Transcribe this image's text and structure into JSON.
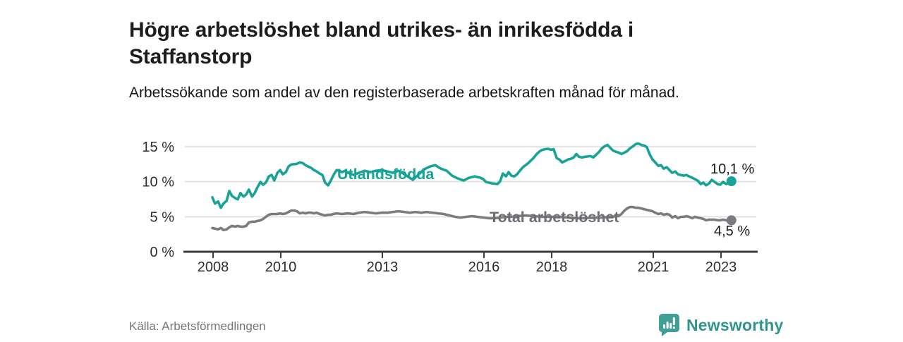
{
  "header": {
    "title": "Högre arbetslöshet bland utrikes- än inrikesfödda i Staffanstorp",
    "subtitle": "Arbetssökande som andel av den registerbaserade arbetskraften månad för månad."
  },
  "footer": {
    "source": "Källa: Arbetsförmedlingen",
    "brand": "Newsworthy"
  },
  "colors": {
    "accent_teal": "#17a398",
    "line_gray": "#7c7c80",
    "label_gray": "#6f6f73",
    "axis": "#3c3c3c",
    "gridline": "#dcdcdc",
    "brand_teal": "#3f9e96"
  },
  "chart_data": {
    "type": "line",
    "title": "Högre arbetslöshet bland utrikes- än inrikesfödda i Staffanstorp",
    "subtitle": "Arbetssökande som andel av den registerbaserade arbetskraften månad för månad.",
    "xlabel": "",
    "ylabel": "",
    "xlim": [
      2007.2,
      2024.1
    ],
    "ylim": [
      0,
      16.9
    ],
    "grid": "horizontal",
    "legend_position": "inline-labels",
    "ytick_values": [
      0,
      5,
      10,
      15
    ],
    "ytick_labels": [
      "0 %",
      "5 %",
      "10 %",
      "15 %"
    ],
    "xtick_values": [
      2008,
      2010,
      2013,
      2016,
      2018,
      2021,
      2023
    ],
    "xtick_labels": [
      "2008",
      "2010",
      "2013",
      "2016",
      "2018",
      "2021",
      "2023"
    ],
    "series": [
      {
        "id": "utlandsfodda",
        "name": "Utlandsfödda",
        "color": "#17a398",
        "end_label": "10,1 %",
        "end_value": 10.1,
        "points": [
          [
            2008.0,
            7.8
          ],
          [
            2008.08,
            6.9
          ],
          [
            2008.17,
            7.2
          ],
          [
            2008.25,
            6.3
          ],
          [
            2008.33,
            6.9
          ],
          [
            2008.42,
            7.3
          ],
          [
            2008.5,
            8.7
          ],
          [
            2008.58,
            8.0
          ],
          [
            2008.67,
            7.7
          ],
          [
            2008.75,
            7.5
          ],
          [
            2008.83,
            8.4
          ],
          [
            2008.92,
            7.9
          ],
          [
            2009.0,
            8.2
          ],
          [
            2009.08,
            8.9
          ],
          [
            2009.17,
            7.9
          ],
          [
            2009.25,
            8.4
          ],
          [
            2009.33,
            9.2
          ],
          [
            2009.42,
            10.0
          ],
          [
            2009.5,
            9.6
          ],
          [
            2009.58,
            9.9
          ],
          [
            2009.67,
            10.8
          ],
          [
            2009.75,
            11.0
          ],
          [
            2009.83,
            10.2
          ],
          [
            2009.92,
            11.3
          ],
          [
            2010.0,
            11.7
          ],
          [
            2010.08,
            11.1
          ],
          [
            2010.17,
            11.4
          ],
          [
            2010.25,
            12.2
          ],
          [
            2010.33,
            12.5
          ],
          [
            2010.5,
            12.6
          ],
          [
            2010.58,
            12.8
          ],
          [
            2010.67,
            12.7
          ],
          [
            2010.75,
            12.4
          ],
          [
            2010.83,
            12.2
          ],
          [
            2010.92,
            12.0
          ],
          [
            2011.0,
            11.7
          ],
          [
            2011.08,
            11.5
          ],
          [
            2011.17,
            11.2
          ],
          [
            2011.25,
            11.0
          ],
          [
            2011.33,
            9.9
          ],
          [
            2011.42,
            9.5
          ],
          [
            2011.5,
            10.2
          ],
          [
            2011.58,
            11.0
          ],
          [
            2011.67,
            11.7
          ],
          [
            2011.75,
            11.6
          ],
          [
            2011.83,
            11.4
          ],
          [
            2011.92,
            11.6
          ],
          [
            2012.0,
            11.3
          ],
          [
            2012.17,
            11.0
          ],
          [
            2012.33,
            11.3
          ],
          [
            2012.5,
            11.6
          ],
          [
            2012.67,
            11.4
          ],
          [
            2012.83,
            11.6
          ],
          [
            2013.0,
            11.7
          ],
          [
            2013.17,
            11.5
          ],
          [
            2013.33,
            11.3
          ],
          [
            2013.5,
            11.6
          ],
          [
            2013.67,
            11.1
          ],
          [
            2013.83,
            10.6
          ],
          [
            2013.92,
            10.3
          ],
          [
            2014.08,
            11.0
          ],
          [
            2014.25,
            11.8
          ],
          [
            2014.42,
            12.2
          ],
          [
            2014.58,
            12.4
          ],
          [
            2014.75,
            11.9
          ],
          [
            2014.92,
            11.6
          ],
          [
            2015.08,
            10.9
          ],
          [
            2015.25,
            10.5
          ],
          [
            2015.42,
            10.2
          ],
          [
            2015.58,
            10.6
          ],
          [
            2015.75,
            10.8
          ],
          [
            2015.92,
            10.6
          ],
          [
            2016.0,
            10.4
          ],
          [
            2016.08,
            10.0
          ],
          [
            2016.25,
            9.8
          ],
          [
            2016.42,
            9.7
          ],
          [
            2016.5,
            10.1
          ],
          [
            2016.58,
            11.2
          ],
          [
            2016.67,
            10.8
          ],
          [
            2016.75,
            11.4
          ],
          [
            2016.83,
            10.9
          ],
          [
            2016.92,
            10.8
          ],
          [
            2017.0,
            11.1
          ],
          [
            2017.08,
            11.6
          ],
          [
            2017.17,
            12.1
          ],
          [
            2017.33,
            12.7
          ],
          [
            2017.5,
            13.5
          ],
          [
            2017.58,
            14.0
          ],
          [
            2017.67,
            14.4
          ],
          [
            2017.75,
            14.6
          ],
          [
            2017.83,
            14.7
          ],
          [
            2017.92,
            14.75
          ],
          [
            2018.0,
            14.6
          ],
          [
            2018.08,
            14.7
          ],
          [
            2018.17,
            13.4
          ],
          [
            2018.25,
            13.2
          ],
          [
            2018.33,
            12.8
          ],
          [
            2018.42,
            13.0
          ],
          [
            2018.5,
            13.2
          ],
          [
            2018.58,
            13.3
          ],
          [
            2018.67,
            13.5
          ],
          [
            2018.75,
            14.0
          ],
          [
            2018.83,
            13.6
          ],
          [
            2018.92,
            13.5
          ],
          [
            2019.0,
            13.6
          ],
          [
            2019.17,
            13.7
          ],
          [
            2019.25,
            13.5
          ],
          [
            2019.42,
            14.3
          ],
          [
            2019.5,
            14.8
          ],
          [
            2019.58,
            15.1
          ],
          [
            2019.67,
            15.3
          ],
          [
            2019.75,
            14.9
          ],
          [
            2019.83,
            14.5
          ],
          [
            2019.92,
            14.3
          ],
          [
            2020.0,
            14.2
          ],
          [
            2020.08,
            14.0
          ],
          [
            2020.17,
            14.2
          ],
          [
            2020.25,
            14.4
          ],
          [
            2020.33,
            14.8
          ],
          [
            2020.42,
            15.1
          ],
          [
            2020.5,
            15.4
          ],
          [
            2020.58,
            15.5
          ],
          [
            2020.67,
            15.3
          ],
          [
            2020.75,
            15.2
          ],
          [
            2020.83,
            15.0
          ],
          [
            2020.92,
            13.9
          ],
          [
            2021.0,
            13.2
          ],
          [
            2021.08,
            12.8
          ],
          [
            2021.17,
            12.3
          ],
          [
            2021.25,
            12.4
          ],
          [
            2021.33,
            11.9
          ],
          [
            2021.42,
            12.1
          ],
          [
            2021.5,
            11.7
          ],
          [
            2021.58,
            11.3
          ],
          [
            2021.67,
            11.5
          ],
          [
            2021.75,
            11.1
          ],
          [
            2021.83,
            11.0
          ],
          [
            2021.92,
            10.9
          ],
          [
            2022.0,
            11.0
          ],
          [
            2022.08,
            10.8
          ],
          [
            2022.17,
            10.6
          ],
          [
            2022.25,
            10.4
          ],
          [
            2022.33,
            10.2
          ],
          [
            2022.42,
            9.7
          ],
          [
            2022.5,
            9.9
          ],
          [
            2022.58,
            9.5
          ],
          [
            2022.67,
            9.8
          ],
          [
            2022.75,
            10.3
          ],
          [
            2022.83,
            10.0
          ],
          [
            2022.92,
            9.7
          ],
          [
            2023.0,
            9.6
          ],
          [
            2023.08,
            10.0
          ],
          [
            2023.17,
            9.7
          ],
          [
            2023.25,
            9.9
          ],
          [
            2023.33,
            10.1
          ]
        ]
      },
      {
        "id": "total",
        "name": "Total arbetslöshet",
        "color": "#7c7c80",
        "end_label": "4,5 %",
        "end_value": 4.5,
        "points": [
          [
            2008.0,
            3.4
          ],
          [
            2008.08,
            3.3
          ],
          [
            2008.17,
            3.2
          ],
          [
            2008.25,
            3.4
          ],
          [
            2008.33,
            3.1
          ],
          [
            2008.42,
            3.2
          ],
          [
            2008.5,
            3.5
          ],
          [
            2008.58,
            3.7
          ],
          [
            2008.67,
            3.6
          ],
          [
            2008.75,
            3.7
          ],
          [
            2008.83,
            3.6
          ],
          [
            2008.92,
            3.6
          ],
          [
            2009.0,
            3.7
          ],
          [
            2009.08,
            4.2
          ],
          [
            2009.17,
            4.3
          ],
          [
            2009.25,
            4.3
          ],
          [
            2009.33,
            4.4
          ],
          [
            2009.42,
            4.5
          ],
          [
            2009.5,
            4.7
          ],
          [
            2009.58,
            5.0
          ],
          [
            2009.67,
            5.3
          ],
          [
            2009.75,
            5.4
          ],
          [
            2009.83,
            5.4
          ],
          [
            2009.92,
            5.4
          ],
          [
            2010.0,
            5.5
          ],
          [
            2010.08,
            5.4
          ],
          [
            2010.17,
            5.5
          ],
          [
            2010.25,
            5.7
          ],
          [
            2010.33,
            5.9
          ],
          [
            2010.42,
            5.9
          ],
          [
            2010.5,
            5.8
          ],
          [
            2010.58,
            5.5
          ],
          [
            2010.67,
            5.6
          ],
          [
            2010.75,
            5.5
          ],
          [
            2010.83,
            5.6
          ],
          [
            2010.92,
            5.6
          ],
          [
            2011.0,
            5.5
          ],
          [
            2011.08,
            5.6
          ],
          [
            2011.17,
            5.4
          ],
          [
            2011.25,
            5.3
          ],
          [
            2011.33,
            5.2
          ],
          [
            2011.42,
            5.3
          ],
          [
            2011.5,
            5.3
          ],
          [
            2011.58,
            5.4
          ],
          [
            2011.67,
            5.5
          ],
          [
            2011.83,
            5.4
          ],
          [
            2012.0,
            5.5
          ],
          [
            2012.17,
            5.4
          ],
          [
            2012.33,
            5.6
          ],
          [
            2012.5,
            5.7
          ],
          [
            2012.67,
            5.6
          ],
          [
            2012.83,
            5.5
          ],
          [
            2013.0,
            5.6
          ],
          [
            2013.17,
            5.6
          ],
          [
            2013.33,
            5.7
          ],
          [
            2013.5,
            5.8
          ],
          [
            2013.67,
            5.7
          ],
          [
            2013.83,
            5.6
          ],
          [
            2014.0,
            5.7
          ],
          [
            2014.17,
            5.6
          ],
          [
            2014.33,
            5.7
          ],
          [
            2014.5,
            5.6
          ],
          [
            2014.67,
            5.5
          ],
          [
            2014.83,
            5.4
          ],
          [
            2015.0,
            5.2
          ],
          [
            2015.17,
            5.0
          ],
          [
            2015.33,
            4.9
          ],
          [
            2015.5,
            5.0
          ],
          [
            2015.67,
            5.1
          ],
          [
            2015.83,
            5.0
          ],
          [
            2016.0,
            4.9
          ],
          [
            2016.17,
            4.8
          ],
          [
            2016.33,
            4.8
          ],
          [
            2016.5,
            4.9
          ],
          [
            2016.67,
            5.0
          ],
          [
            2016.83,
            5.0
          ],
          [
            2017.0,
            5.1
          ],
          [
            2017.25,
            5.2
          ],
          [
            2017.5,
            5.1
          ],
          [
            2017.75,
            5.0
          ],
          [
            2018.0,
            5.0
          ],
          [
            2018.25,
            5.0
          ],
          [
            2018.5,
            4.9
          ],
          [
            2018.75,
            4.8
          ],
          [
            2019.0,
            4.8
          ],
          [
            2019.25,
            4.9
          ],
          [
            2019.5,
            4.9
          ],
          [
            2019.75,
            5.0
          ],
          [
            2020.0,
            5.1
          ],
          [
            2020.08,
            5.4
          ],
          [
            2020.17,
            5.9
          ],
          [
            2020.25,
            6.2
          ],
          [
            2020.33,
            6.4
          ],
          [
            2020.42,
            6.4
          ],
          [
            2020.5,
            6.3
          ],
          [
            2020.58,
            6.3
          ],
          [
            2020.67,
            6.2
          ],
          [
            2020.75,
            6.1
          ],
          [
            2020.83,
            6.0
          ],
          [
            2020.92,
            5.9
          ],
          [
            2021.0,
            5.8
          ],
          [
            2021.08,
            5.6
          ],
          [
            2021.17,
            5.4
          ],
          [
            2021.25,
            5.5
          ],
          [
            2021.33,
            5.3
          ],
          [
            2021.42,
            5.4
          ],
          [
            2021.5,
            5.3
          ],
          [
            2021.58,
            4.9
          ],
          [
            2021.67,
            5.1
          ],
          [
            2021.75,
            4.8
          ],
          [
            2021.83,
            5.0
          ],
          [
            2021.92,
            5.0
          ],
          [
            2022.0,
            5.1
          ],
          [
            2022.08,
            5.0
          ],
          [
            2022.17,
            4.8
          ],
          [
            2022.25,
            5.0
          ],
          [
            2022.33,
            4.9
          ],
          [
            2022.42,
            4.8
          ],
          [
            2022.5,
            4.7
          ],
          [
            2022.58,
            4.5
          ],
          [
            2022.67,
            4.6
          ],
          [
            2022.75,
            4.6
          ],
          [
            2022.83,
            4.6
          ],
          [
            2022.92,
            4.5
          ],
          [
            2023.0,
            4.5
          ],
          [
            2023.08,
            4.6
          ],
          [
            2023.17,
            4.5
          ],
          [
            2023.25,
            4.5
          ],
          [
            2023.33,
            4.5
          ]
        ]
      }
    ]
  }
}
